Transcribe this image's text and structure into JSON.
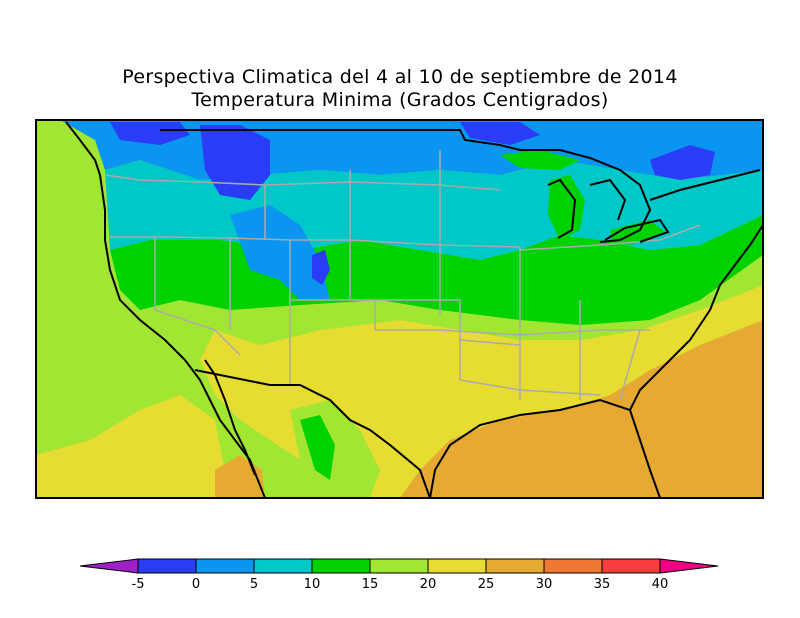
{
  "title": "Perspectiva Climatica del 4 al 10 de septiembre de 2014",
  "subtitle": "Temperatura Minima (Grados Centigrados)",
  "legend": {
    "labels": [
      "-5",
      "0",
      "5",
      "10",
      "15",
      "20",
      "25",
      "30",
      "35",
      "40"
    ],
    "colors": [
      "#a020c8",
      "#2a3cf5",
      "#0a96f0",
      "#00c8c8",
      "#00d200",
      "#a0e632",
      "#e6dc32",
      "#e6aa32",
      "#f07832",
      "#fa3c3c",
      "#f00082"
    ]
  },
  "map": {
    "region": "contiguous-united-states",
    "colors": {
      "ocean_pacific": "#a0e632",
      "below_0": "#2a3cf5",
      "0_5": "#0a96f0",
      "5_10": "#00c8c8",
      "10_15": "#00d200",
      "15_20": "#a0e632",
      "20_25": "#e6dc32",
      "25_30": "#e6aa32",
      "borders": "#aaaaaa",
      "coast": "#000000"
    }
  }
}
